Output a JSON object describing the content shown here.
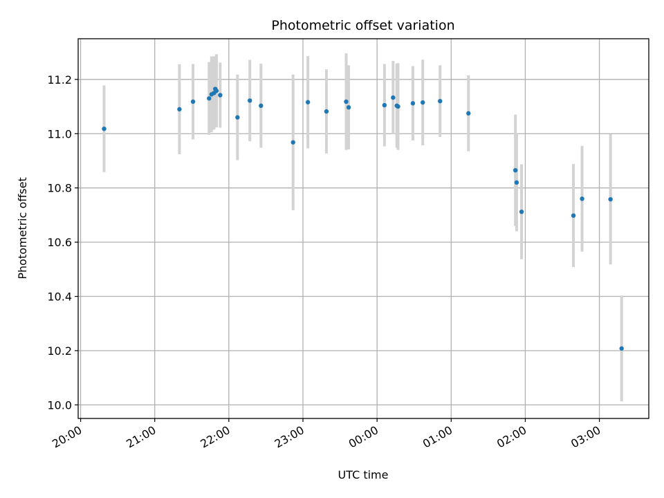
{
  "chart_data": {
    "type": "scatter",
    "title": "Photometric offset variation",
    "xlabel": "UTC time",
    "ylabel": "Photometric offset",
    "grid": true,
    "x_unit": "UTC",
    "x_ticks": [
      "20:00",
      "21:00",
      "22:00",
      "23:00",
      "00:00",
      "01:00",
      "02:00",
      "03:00"
    ],
    "y_ticks": [
      "10.0",
      "10.2",
      "10.4",
      "10.6",
      "10.8",
      "11.0",
      "11.2"
    ],
    "ylim": [
      9.95,
      11.35
    ],
    "xlim": [
      "19:58",
      "03:40"
    ],
    "colors": {
      "point": "#1f77b4",
      "error_bar": "#d3d3d3",
      "grid": "#b0b0b0"
    },
    "series": [
      {
        "points": [
          {
            "x": "20:19",
            "y": 11.018,
            "err": 0.16
          },
          {
            "x": "21:20",
            "y": 11.09,
            "err": 0.166
          },
          {
            "x": "21:31",
            "y": 11.118,
            "err": 0.139
          },
          {
            "x": "21:44",
            "y": 11.13,
            "err": 0.134
          },
          {
            "x": "21:46",
            "y": 11.145,
            "err": 0.14
          },
          {
            "x": "21:48",
            "y": 11.15,
            "err": 0.135
          },
          {
            "x": "21:49",
            "y": 11.165,
            "err": 0.12
          },
          {
            "x": "21:50",
            "y": 11.158,
            "err": 0.135
          },
          {
            "x": "21:53",
            "y": 11.142,
            "err": 0.12
          },
          {
            "x": "22:07",
            "y": 11.06,
            "err": 0.158
          },
          {
            "x": "22:17",
            "y": 11.122,
            "err": 0.15
          },
          {
            "x": "22:26",
            "y": 11.103,
            "err": 0.155
          },
          {
            "x": "22:52",
            "y": 10.968,
            "err": 0.25
          },
          {
            "x": "23:04",
            "y": 11.116,
            "err": 0.17
          },
          {
            "x": "23:19",
            "y": 11.082,
            "err": 0.155
          },
          {
            "x": "23:35",
            "y": 11.118,
            "err": 0.178
          },
          {
            "x": "23:37",
            "y": 11.097,
            "err": 0.155
          },
          {
            "x": "00:06",
            "y": 11.105,
            "err": 0.152
          },
          {
            "x": "00:13",
            "y": 11.133,
            "err": 0.135
          },
          {
            "x": "00:16",
            "y": 11.103,
            "err": 0.155
          },
          {
            "x": "00:17",
            "y": 11.1,
            "err": 0.16
          },
          {
            "x": "00:29",
            "y": 11.112,
            "err": 0.137
          },
          {
            "x": "00:37",
            "y": 11.115,
            "err": 0.158
          },
          {
            "x": "00:51",
            "y": 11.12,
            "err": 0.132
          },
          {
            "x": "01:14",
            "y": 11.075,
            "err": 0.14
          },
          {
            "x": "01:52",
            "y": 10.865,
            "err": 0.205
          },
          {
            "x": "01:53",
            "y": 10.82,
            "err": 0.18
          },
          {
            "x": "01:57",
            "y": 10.712,
            "err": 0.175
          },
          {
            "x": "02:39",
            "y": 10.698,
            "err": 0.19
          },
          {
            "x": "02:46",
            "y": 10.76,
            "err": 0.195
          },
          {
            "x": "03:09",
            "y": 10.758,
            "err": 0.24
          },
          {
            "x": "03:18",
            "y": 10.208,
            "err": 0.195
          }
        ]
      }
    ]
  }
}
